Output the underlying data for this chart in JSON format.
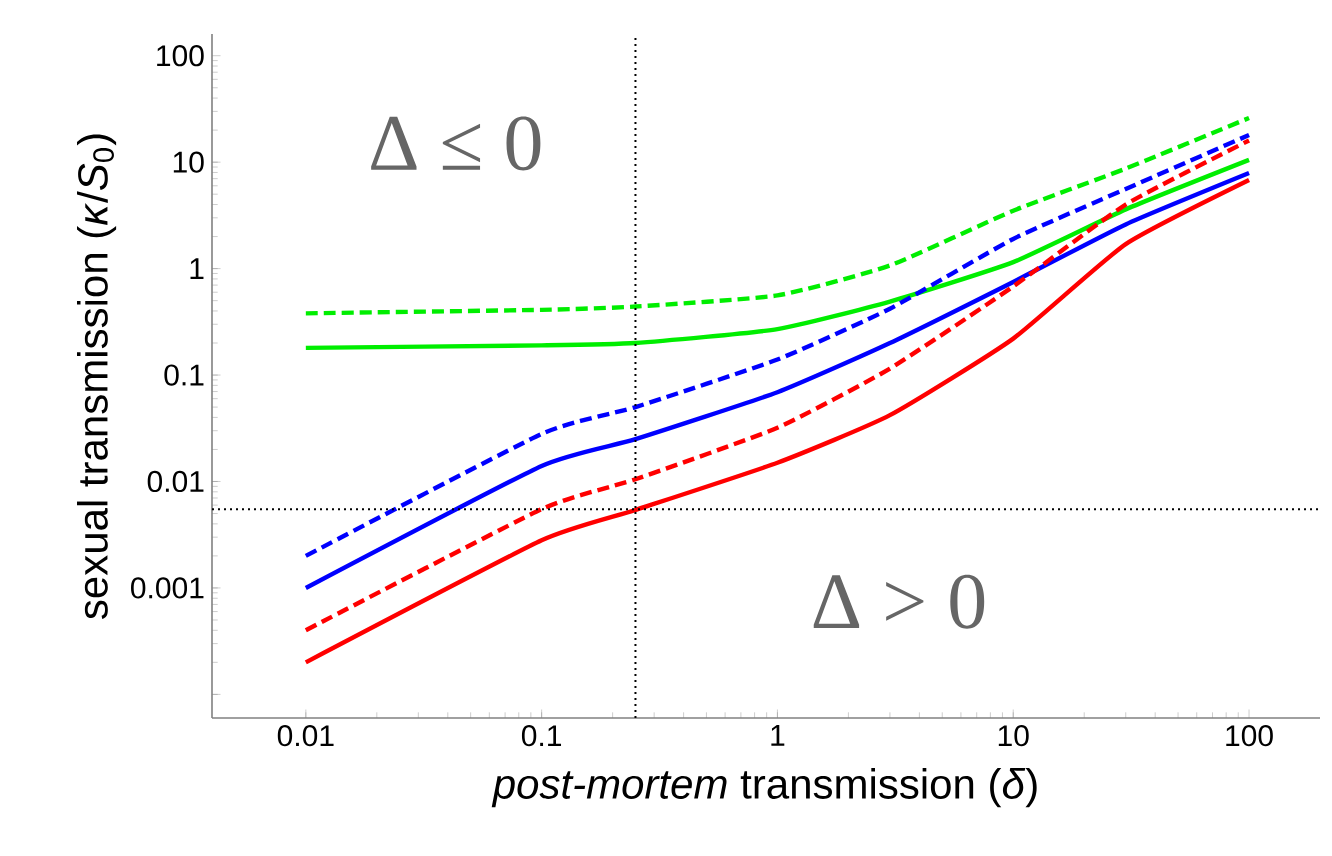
{
  "chart_data": {
    "type": "line",
    "xlabel": "*post-mortem* transmission (*δ*)",
    "ylabel": "sexual transmission (*κ*/*S*$_{0}$)",
    "annotations": [
      "Δ ≤ 0",
      "Δ > 0"
    ],
    "log": "xy",
    "grid": false,
    "marker": "none",
    "xlim": [
      0.004,
      200
    ],
    "ylim": [
      6e-05,
      160
    ],
    "xticks": [
      0.01,
      0.1,
      1,
      10,
      100
    ],
    "yticks": [
      {
        "value": 0.0001,
        "label": null
      },
      0.001,
      0.01,
      0.1,
      1,
      10,
      100
    ],
    "x": [
      0.01,
      0.1,
      0.25,
      1,
      3,
      10,
      30,
      100
    ],
    "series": [
      {
        "color": "#00ee00",
        "line_style": "dashed",
        "values": [
          0.38,
          0.41,
          0.44,
          0.56,
          1.07,
          3.5,
          8.7,
          26
        ]
      },
      {
        "color": "#00ee00",
        "line_style": "solid",
        "values": [
          0.18,
          0.19,
          0.2,
          0.27,
          0.49,
          1.15,
          3.6,
          10.5
        ]
      },
      {
        "color": "#0000ff",
        "line_style": "dashed",
        "values": [
          0.002,
          0.028,
          0.05,
          0.14,
          0.42,
          1.9,
          5.6,
          18
        ]
      },
      {
        "color": "#0000ff",
        "line_style": "solid",
        "values": [
          0.001,
          0.014,
          0.025,
          0.069,
          0.2,
          0.75,
          2.6,
          7.9
        ]
      },
      {
        "color": "#ff0000",
        "line_style": "dashed",
        "values": [
          0.0004,
          0.0055,
          0.0105,
          0.032,
          0.115,
          0.68,
          4,
          16
        ]
      },
      {
        "color": "#ff0000",
        "line_style": "solid",
        "values": [
          0.0002,
          0.0028,
          0.0054,
          0.015,
          0.042,
          0.22,
          1.7,
          6.8
        ]
      }
    ],
    "ref_lines": [
      {
        "axis": "x",
        "value": 0.25,
        "line_style": "dotted"
      },
      {
        "axis": "y",
        "value": 0.0055,
        "line_style": "dotted"
      }
    ]
  }
}
